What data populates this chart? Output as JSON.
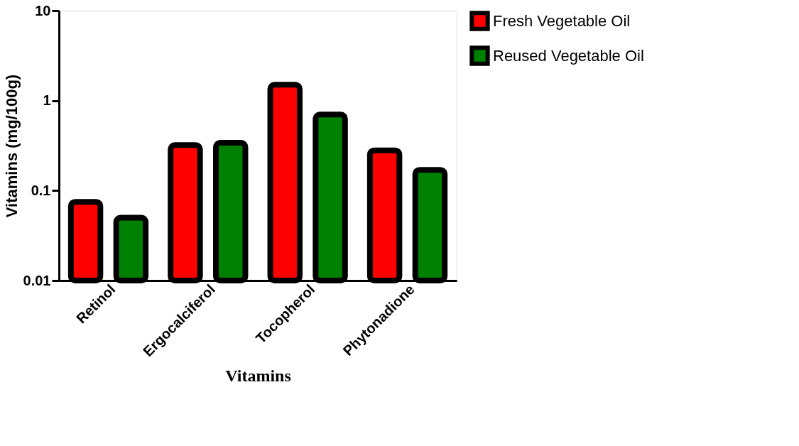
{
  "chart_data": {
    "type": "bar",
    "xlabel": "Vitamins",
    "ylabel": "Vitamins (mg/100g)",
    "categories": [
      "Retinol",
      "Ergocalciferol",
      "Tocopherol",
      "Phytonadione"
    ],
    "series": [
      {
        "name": "Fresh Vegetable Oil",
        "color": "#ff0000",
        "values": [
          0.075,
          0.32,
          1.5,
          0.28
        ]
      },
      {
        "name": "Reused Vegetable Oil",
        "color": "#008000",
        "values": [
          0.05,
          0.34,
          0.7,
          0.17
        ]
      }
    ],
    "log": true,
    "ylim": [
      0.01,
      10
    ],
    "yticks": [
      0.01,
      0.1,
      1,
      10
    ],
    "grid": false,
    "legend": "top right"
  }
}
